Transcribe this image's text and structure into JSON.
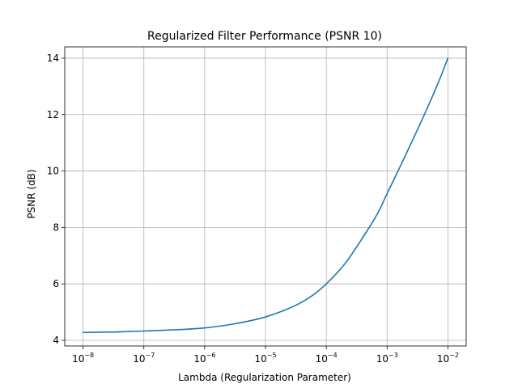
{
  "chart_data": {
    "type": "line",
    "title": "Regularized Filter Performance (PSNR 10)",
    "xlabel": "Lambda (Regularization Parameter)",
    "ylabel": "PSNR (dB)",
    "xscale": "log",
    "xlim": [
      5e-09,
      0.02
    ],
    "ylim": [
      3.8,
      14.4
    ],
    "grid": true,
    "xticks": [
      {
        "value": 1e-08,
        "base": "10",
        "exp": "−8"
      },
      {
        "value": 1e-07,
        "base": "10",
        "exp": "−7"
      },
      {
        "value": 1e-06,
        "base": "10",
        "exp": "−6"
      },
      {
        "value": 1e-05,
        "base": "10",
        "exp": "−5"
      },
      {
        "value": 0.0001,
        "base": "10",
        "exp": "−4"
      },
      {
        "value": 0.001,
        "base": "10",
        "exp": "−3"
      },
      {
        "value": 0.01,
        "base": "10",
        "exp": "−2"
      }
    ],
    "yticks": [
      {
        "value": 4,
        "label": "4"
      },
      {
        "value": 6,
        "label": "6"
      },
      {
        "value": 8,
        "label": "8"
      },
      {
        "value": 10,
        "label": "10"
      },
      {
        "value": 12,
        "label": "12"
      },
      {
        "value": 14,
        "label": "14"
      }
    ],
    "series": [
      {
        "color": "#1f77b4",
        "x": [
          1e-08,
          2e-08,
          4e-08,
          1e-07,
          3e-07,
          1e-06,
          3e-06,
          1e-05,
          3e-05,
          6e-05,
          0.0001,
          0.0002,
          0.0004,
          0.0007,
          0.001,
          0.002,
          0.004,
          0.007,
          0.01
        ],
        "y": [
          4.28,
          4.29,
          4.3,
          4.33,
          4.37,
          4.44,
          4.58,
          4.83,
          5.22,
          5.6,
          6.0,
          6.7,
          7.65,
          8.5,
          9.2,
          10.55,
          11.95,
          13.15,
          14.0
        ]
      }
    ]
  }
}
